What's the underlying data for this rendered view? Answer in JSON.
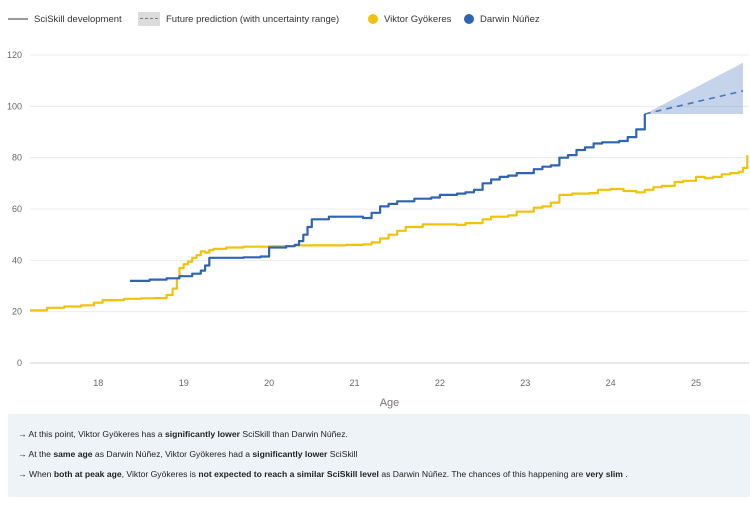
{
  "legend": {
    "items": [
      {
        "label": "SciSkill development",
        "kind": "line",
        "color": "#9a9a9a"
      },
      {
        "label": "Future prediction (with uncertainty range)",
        "kind": "dashed",
        "color": "#7a7a7a"
      },
      {
        "label": "Viktor Gyökeres",
        "kind": "dot",
        "color": "#f2c20b"
      },
      {
        "label": "Darwin Núñez",
        "kind": "dot",
        "color": "#2e64b3"
      }
    ]
  },
  "chart_data": {
    "type": "line",
    "title": "",
    "xlabel": "Age",
    "ylabel": "",
    "xlim": [
      17.2,
      25.62
    ],
    "ylim": [
      0,
      120
    ],
    "x_ticks": [
      18,
      19,
      20,
      21,
      22,
      23,
      24,
      25
    ],
    "y_ticks": [
      0,
      20,
      40,
      60,
      80,
      100,
      120
    ],
    "grid": true,
    "series": [
      {
        "name": "Viktor Gyökeres",
        "color": "#f2c20b",
        "x": [
          17.2,
          17.4,
          17.6,
          17.8,
          17.95,
          18.05,
          18.3,
          18.5,
          18.65,
          18.8,
          18.87,
          18.92,
          18.95,
          19.0,
          19.05,
          19.1,
          19.15,
          19.2,
          19.25,
          19.3,
          19.35,
          19.5,
          19.7,
          20.0,
          20.3,
          20.6,
          20.9,
          21.1,
          21.2,
          21.3,
          21.4,
          21.5,
          21.6,
          21.8,
          22.0,
          22.2,
          22.3,
          22.5,
          22.6,
          22.8,
          22.9,
          23.1,
          23.2,
          23.3,
          23.4,
          23.55,
          23.65,
          23.75,
          23.85,
          24.0,
          24.15,
          24.3,
          24.4,
          24.5,
          24.6,
          24.75,
          24.85,
          25.0,
          25.1,
          25.2,
          25.3,
          25.4,
          25.5,
          25.55,
          25.6
        ],
        "y": [
          20.5,
          21.5,
          22,
          22.5,
          23.5,
          24.5,
          25,
          25.2,
          25.3,
          26.5,
          29,
          33,
          37,
          38.5,
          39.5,
          41,
          42,
          43.5,
          43,
          44,
          44.5,
          45,
          45.3,
          45.5,
          45.8,
          45.8,
          46,
          46.2,
          47,
          48.5,
          50,
          51.5,
          53,
          54,
          54,
          53.8,
          54.5,
          56,
          57,
          57.5,
          59,
          60.5,
          61,
          62.5,
          65.5,
          66,
          66,
          66.2,
          67.5,
          67.8,
          67,
          66.5,
          67.5,
          68.5,
          69,
          70.5,
          71,
          72.5,
          72,
          72.5,
          73.5,
          74,
          74.5,
          76,
          81
        ]
      },
      {
        "name": "Darwin Núñez",
        "color": "#2e64b3",
        "x": [
          18.37,
          18.6,
          18.8,
          18.95,
          19.1,
          19.2,
          19.25,
          19.3,
          19.5,
          19.7,
          19.9,
          20.0,
          20.2,
          20.3,
          20.35,
          20.4,
          20.45,
          20.5,
          20.6,
          20.7,
          20.9,
          21.1,
          21.2,
          21.3,
          21.4,
          21.5,
          21.7,
          21.9,
          22.0,
          22.2,
          22.3,
          22.4,
          22.5,
          22.6,
          22.7,
          22.8,
          22.9,
          23.0,
          23.1,
          23.2,
          23.3,
          23.4,
          23.5,
          23.6,
          23.7,
          23.8,
          23.9,
          24.0,
          24.1,
          24.2,
          24.3,
          24.4
        ],
        "y": [
          32,
          32.5,
          33,
          33.8,
          34.8,
          36,
          38,
          41,
          41,
          41.2,
          41.5,
          45,
          45.5,
          46,
          47.5,
          50,
          53,
          56,
          56,
          57,
          57,
          56.5,
          58.5,
          61,
          62,
          63,
          64,
          64.5,
          65.5,
          66,
          66.5,
          67.5,
          70,
          71.5,
          72.5,
          73,
          74,
          74,
          75.5,
          76.5,
          77,
          80,
          81,
          83,
          84,
          85.5,
          86,
          86,
          86.5,
          88,
          91,
          97
        ]
      },
      {
        "name": "Darwin Núñez prediction",
        "color": "#2e64b3",
        "dashed": true,
        "x": [
          24.4,
          25.55
        ],
        "y": [
          97,
          106
        ],
        "band_lower": [
          97,
          97
        ],
        "band_upper": [
          97,
          117
        ]
      }
    ]
  },
  "notes": [
    {
      "parts": [
        {
          "t": "→ At this point, Viktor Gyökeres has a ",
          "b": false
        },
        {
          "t": "significantly lower",
          "b": true
        },
        {
          "t": " SciSkill than Darwin Núñez.",
          "b": false
        }
      ]
    },
    {
      "parts": [
        {
          "t": "→ At the ",
          "b": false
        },
        {
          "t": "same age",
          "b": true
        },
        {
          "t": " as Darwin Núñez, Viktor Gyökeres had a ",
          "b": false
        },
        {
          "t": "significantly lower",
          "b": true
        },
        {
          "t": " SciSkill",
          "b": false
        }
      ]
    },
    {
      "parts": [
        {
          "t": "→ When ",
          "b": false
        },
        {
          "t": "both at peak age",
          "b": true
        },
        {
          "t": ", Viktor Gyökeres is ",
          "b": false
        },
        {
          "t": "not expected to reach a similar SciSkill level",
          "b": true
        },
        {
          "t": " as Darwin Núñez. The chances of this happening are ",
          "b": false
        },
        {
          "t": "very slim",
          "b": true
        },
        {
          "t": " .",
          "b": false
        }
      ]
    }
  ]
}
